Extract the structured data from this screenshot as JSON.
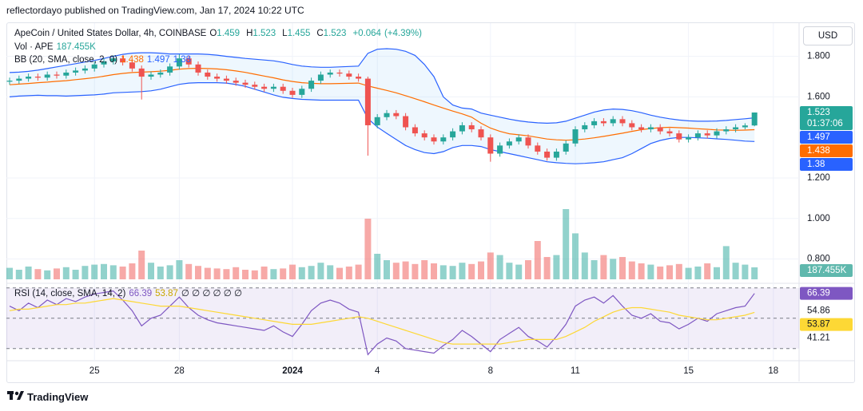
{
  "header": {
    "publisher": "reflectordayo published on TradingView.com, Jan 17, 2024 10:22 UTC",
    "currency": "USD"
  },
  "footer": {
    "brand": "TradingView"
  },
  "chart_data": [
    {
      "type": "candlestick",
      "title": "ApeCoin / United States Dollar, 4h, COINBASE",
      "quote_keys": [
        "O",
        "H",
        "L",
        "C"
      ],
      "change": "+0.064",
      "change_pct": "(+4.39%)",
      "countdown": "01:37:06",
      "up_color": "#26a69a",
      "down_color": "#ef5350",
      "categories": [
        null,
        null,
        null,
        null,
        null,
        null,
        null,
        null,
        null,
        "25",
        null,
        null,
        null,
        null,
        null,
        null,
        null,
        null,
        "28",
        null,
        null,
        null,
        null,
        null,
        null,
        null,
        null,
        null,
        null,
        null,
        "2024",
        null,
        null,
        null,
        null,
        null,
        null,
        null,
        null,
        "4",
        null,
        null,
        null,
        null,
        null,
        null,
        null,
        null,
        null,
        null,
        null,
        "8",
        null,
        null,
        null,
        null,
        null,
        null,
        null,
        null,
        "11",
        null,
        null,
        null,
        null,
        null,
        null,
        null,
        null,
        null,
        null,
        null,
        "15",
        null,
        null,
        null,
        null,
        null,
        null,
        null,
        null,
        "18",
        null,
        null,
        null
      ],
      "ohlc": {
        "open": [
          1.675,
          1.68,
          1.69,
          1.7,
          1.695,
          1.71,
          1.705,
          1.72,
          1.73,
          1.74,
          1.76,
          1.775,
          1.79,
          1.77,
          1.74,
          1.7,
          1.71,
          1.72,
          1.75,
          1.79,
          1.76,
          1.72,
          1.7,
          1.69,
          1.68,
          1.67,
          1.66,
          1.65,
          1.64,
          1.65,
          1.63,
          1.61,
          1.64,
          1.68,
          1.71,
          1.72,
          1.715,
          1.7,
          1.69,
          1.46,
          1.5,
          1.52,
          1.505,
          1.45,
          1.42,
          1.4,
          1.38,
          1.4,
          1.43,
          1.46,
          1.44,
          1.4,
          1.32,
          1.36,
          1.38,
          1.4,
          1.36,
          1.33,
          1.3,
          1.33,
          1.37,
          1.44,
          1.46,
          1.48,
          1.47,
          1.49,
          1.47,
          1.45,
          1.44,
          1.45,
          1.43,
          1.42,
          1.39,
          1.4,
          1.42,
          1.41,
          1.43,
          1.44,
          1.45,
          1.459,
          null,
          null,
          null,
          null,
          null
        ],
        "high": [
          1.695,
          1.705,
          1.715,
          1.715,
          1.725,
          1.725,
          1.735,
          1.745,
          1.755,
          1.775,
          1.79,
          1.805,
          1.805,
          1.785,
          1.755,
          1.725,
          1.735,
          1.765,
          1.81,
          1.805,
          1.775,
          1.735,
          1.715,
          1.705,
          1.695,
          1.685,
          1.675,
          1.665,
          1.665,
          1.665,
          1.645,
          1.655,
          1.695,
          1.725,
          1.735,
          1.735,
          1.73,
          1.715,
          1.7,
          1.515,
          1.535,
          1.535,
          1.52,
          1.465,
          1.435,
          1.415,
          1.415,
          1.445,
          1.475,
          1.475,
          1.455,
          1.415,
          1.375,
          1.395,
          1.415,
          1.415,
          1.375,
          1.345,
          1.345,
          1.385,
          1.455,
          1.475,
          1.495,
          1.495,
          1.505,
          1.505,
          1.485,
          1.465,
          1.465,
          1.465,
          1.445,
          1.435,
          1.415,
          1.435,
          1.435,
          1.445,
          1.455,
          1.465,
          1.47,
          1.523,
          null,
          null,
          null,
          null,
          null
        ],
        "low": [
          1.66,
          1.665,
          1.675,
          1.68,
          1.68,
          1.69,
          1.69,
          1.705,
          1.715,
          1.725,
          1.745,
          1.76,
          1.755,
          1.725,
          1.587,
          1.685,
          1.695,
          1.705,
          1.735,
          1.745,
          1.705,
          1.685,
          1.675,
          1.665,
          1.655,
          1.645,
          1.635,
          1.625,
          1.625,
          1.615,
          1.595,
          1.595,
          1.625,
          1.665,
          1.695,
          1.7,
          1.685,
          1.675,
          1.31,
          1.445,
          1.485,
          1.49,
          1.435,
          1.405,
          1.385,
          1.365,
          1.365,
          1.385,
          1.415,
          1.425,
          1.385,
          1.28,
          1.305,
          1.345,
          1.365,
          1.345,
          1.315,
          1.285,
          1.285,
          1.315,
          1.355,
          1.425,
          1.445,
          1.455,
          1.455,
          1.455,
          1.435,
          1.425,
          1.425,
          1.415,
          1.405,
          1.375,
          1.375,
          1.385,
          1.395,
          1.395,
          1.415,
          1.425,
          1.44,
          1.455,
          null,
          null,
          null,
          null,
          null
        ],
        "close": [
          1.68,
          1.69,
          1.7,
          1.695,
          1.71,
          1.705,
          1.72,
          1.73,
          1.74,
          1.76,
          1.775,
          1.79,
          1.77,
          1.74,
          1.7,
          1.71,
          1.72,
          1.75,
          1.79,
          1.76,
          1.72,
          1.7,
          1.69,
          1.68,
          1.67,
          1.66,
          1.65,
          1.64,
          1.65,
          1.63,
          1.61,
          1.64,
          1.68,
          1.71,
          1.72,
          1.715,
          1.7,
          1.69,
          1.46,
          1.5,
          1.52,
          1.505,
          1.45,
          1.42,
          1.4,
          1.38,
          1.4,
          1.43,
          1.46,
          1.44,
          1.4,
          1.32,
          1.36,
          1.38,
          1.4,
          1.36,
          1.33,
          1.3,
          1.33,
          1.37,
          1.44,
          1.46,
          1.48,
          1.47,
          1.49,
          1.47,
          1.45,
          1.44,
          1.45,
          1.43,
          1.42,
          1.39,
          1.4,
          1.42,
          1.41,
          1.43,
          1.44,
          1.45,
          1.459,
          1.523,
          null,
          null,
          null,
          null,
          null
        ]
      },
      "indicator": "BB (20, SMA, close, 2, 0)",
      "band_fill": "rgba(33,150,243,0.08)",
      "series": [
        {
          "color": "#ff6d00",
          "values": [
            1.66,
            1.663,
            1.666,
            1.67,
            1.673,
            1.677,
            1.68,
            1.685,
            1.69,
            1.695,
            1.702,
            1.71,
            1.716,
            1.72,
            1.722,
            1.724,
            1.727,
            1.731,
            1.737,
            1.74,
            1.741,
            1.74,
            1.738,
            1.734,
            1.728,
            1.721,
            1.712,
            1.703,
            1.694,
            1.684,
            1.676,
            1.67,
            1.667,
            1.665,
            1.665,
            1.666,
            1.667,
            1.668,
            1.654,
            1.643,
            1.632,
            1.62,
            1.606,
            1.591,
            1.576,
            1.56,
            1.545,
            1.53,
            1.516,
            1.5,
            1.47,
            1.446,
            1.43,
            1.418,
            1.413,
            1.408,
            1.4,
            1.392,
            1.388,
            1.386,
            1.388,
            1.392,
            1.398,
            1.405,
            1.413,
            1.421,
            1.43,
            1.438,
            1.444,
            1.448,
            1.45,
            1.448,
            1.446,
            1.443,
            1.44,
            1.437,
            1.436,
            1.435,
            1.436,
            1.438,
            null,
            null,
            null,
            null,
            null
          ]
        },
        {
          "color": "#2962ff",
          "values": [
            1.72,
            1.722,
            1.726,
            1.732,
            1.74,
            1.748,
            1.756,
            1.764,
            1.772,
            1.78,
            1.79,
            1.8,
            1.81,
            1.816,
            1.818,
            1.818,
            1.816,
            1.812,
            1.812,
            1.812,
            1.812,
            1.81,
            1.806,
            1.8,
            1.795,
            1.79,
            1.786,
            1.782,
            1.778,
            1.77,
            1.76,
            1.752,
            1.748,
            1.746,
            1.746,
            1.748,
            1.75,
            1.752,
            1.815,
            1.835,
            1.838,
            1.835,
            1.825,
            1.805,
            1.76,
            1.7,
            1.6,
            1.56,
            1.545,
            1.54,
            1.52,
            1.51,
            1.5,
            1.49,
            1.482,
            1.476,
            1.472,
            1.47,
            1.472,
            1.48,
            1.495,
            1.51,
            1.525,
            1.535,
            1.54,
            1.538,
            1.532,
            1.522,
            1.51,
            1.5,
            1.492,
            1.486,
            1.482,
            1.48,
            1.48,
            1.481,
            1.484,
            1.488,
            1.492,
            1.497,
            null,
            null,
            null,
            null,
            null
          ]
        },
        {
          "color": "#2962ff",
          "values": [
            1.6,
            1.604,
            1.606,
            1.608,
            1.606,
            1.606,
            1.604,
            1.606,
            1.608,
            1.61,
            1.614,
            1.62,
            1.622,
            1.624,
            1.626,
            1.63,
            1.638,
            1.65,
            1.662,
            1.668,
            1.67,
            1.67,
            1.67,
            1.668,
            1.661,
            1.652,
            1.638,
            1.624,
            1.61,
            1.598,
            1.592,
            1.588,
            1.586,
            1.584,
            1.584,
            1.584,
            1.584,
            1.584,
            1.493,
            1.451,
            1.42,
            1.39,
            1.36,
            1.34,
            1.325,
            1.32,
            1.33,
            1.35,
            1.36,
            1.36,
            1.355,
            1.34,
            1.33,
            1.32,
            1.31,
            1.3,
            1.29,
            1.28,
            1.275,
            1.272,
            1.27,
            1.272,
            1.275,
            1.28,
            1.29,
            1.3,
            1.32,
            1.345,
            1.37,
            1.385,
            1.395,
            1.4,
            1.4,
            1.398,
            1.396,
            1.393,
            1.39,
            1.386,
            1.382,
            1.38,
            null,
            null,
            null,
            null,
            null
          ]
        }
      ],
      "ylim": [
        0.68,
        1.96
      ],
      "yticks": [
        {
          "value": 0.8,
          "label": "0.800"
        },
        {
          "value": 1.0,
          "label": "1.000"
        },
        {
          "value": 1.2,
          "label": "1.200"
        },
        {
          "value": 1.6,
          "label": "1.600"
        },
        {
          "value": 1.8,
          "label": "1.800"
        }
      ],
      "grid": true
    },
    {
      "type": "bar",
      "title": "Vol · APE",
      "up_color": "rgba(38,166,154,0.5)",
      "down_color": "rgba(239,83,80,0.5)",
      "values": [
        180000,
        150000,
        200000,
        160000,
        140000,
        170000,
        190000,
        150000,
        210000,
        230000,
        240000,
        220000,
        200000,
        250000,
        450000,
        260000,
        200000,
        220000,
        300000,
        240000,
        210000,
        180000,
        170000,
        160000,
        190000,
        150000,
        140000,
        200000,
        160000,
        170000,
        230000,
        190000,
        210000,
        260000,
        220000,
        180000,
        200000,
        230000,
        950000,
        400000,
        300000,
        260000,
        280000,
        240000,
        300000,
        250000,
        220000,
        210000,
        260000,
        240000,
        280000,
        420000,
        380000,
        260000,
        230000,
        300000,
        600000,
        350000,
        380000,
        1100000,
        720000,
        420000,
        300000,
        380000,
        320000,
        350000,
        280000,
        250000,
        230000,
        200000,
        220000,
        240000,
        180000,
        200000,
        250000,
        190000,
        520000,
        260000,
        230000,
        187455,
        null,
        null,
        null,
        null,
        null
      ],
      "value_labels": [
        null,
        null,
        null,
        null,
        null,
        null,
        null,
        null,
        null,
        null,
        null,
        null,
        null,
        null,
        null,
        null,
        null,
        null,
        null,
        null,
        null,
        null,
        null,
        null,
        null,
        null,
        null,
        null,
        null,
        null,
        null,
        null,
        null,
        null,
        null,
        null,
        null,
        null,
        null,
        null,
        null,
        null,
        null,
        null,
        null,
        null,
        null,
        null,
        null,
        null,
        null,
        null,
        null,
        null,
        null,
        null,
        null,
        null,
        null,
        null,
        null,
        null,
        null,
        null,
        null,
        null,
        null,
        null,
        null,
        null,
        null,
        null,
        null,
        null,
        null,
        null,
        null,
        null,
        null,
        "187.455K",
        null,
        null,
        null,
        null,
        null
      ]
    },
    {
      "type": "line",
      "title": "RSI (14, close, SMA, 14, 2)",
      "placeholders": "∅ ∅ ∅ ∅ ∅ ∅",
      "series": [
        {
          "color": "#7e57c2",
          "values": [
            58,
            55,
            60,
            57,
            62,
            59,
            63,
            61,
            64,
            66,
            67,
            68,
            62,
            55,
            45,
            50,
            52,
            58,
            64,
            57,
            52,
            49,
            47,
            46,
            45,
            44,
            43,
            42,
            45,
            41,
            38,
            46,
            55,
            60,
            62,
            60,
            56,
            54,
            26,
            33,
            37,
            35,
            30,
            29,
            28,
            27,
            32,
            36,
            42,
            38,
            33,
            28,
            36,
            40,
            44,
            38,
            35,
            31,
            38,
            46,
            58,
            62,
            64,
            60,
            65,
            58,
            52,
            50,
            53,
            48,
            47,
            43,
            46,
            50,
            48,
            53,
            55,
            57,
            58,
            66.39,
            null,
            null,
            null,
            null,
            null
          ]
        },
        {
          "color": "#fdd835",
          "values": [
            55,
            56,
            56,
            57,
            58,
            59,
            59,
            60,
            60,
            61,
            62,
            63,
            62,
            61,
            60,
            59,
            58,
            58,
            58,
            57,
            56,
            55,
            54,
            53,
            52,
            51,
            50,
            49,
            48,
            47,
            46,
            46,
            46,
            47,
            48,
            49,
            50,
            51,
            50,
            48,
            46,
            44,
            42,
            40,
            38,
            36,
            34,
            33,
            33,
            33,
            33,
            33,
            33,
            34,
            35,
            36,
            36,
            36,
            36,
            38,
            41,
            44,
            48,
            51,
            54,
            56,
            57,
            57,
            56,
            55,
            54,
            52,
            51,
            50,
            49,
            49,
            50,
            51,
            52,
            53.87,
            null,
            null,
            null,
            null,
            null
          ]
        }
      ],
      "bands": [
        70,
        50,
        30
      ],
      "band_fill": "rgba(126,87,194,0.1)",
      "ylim": [
        22,
        72
      ],
      "yticks": [
        41.21,
        54.86
      ]
    }
  ]
}
